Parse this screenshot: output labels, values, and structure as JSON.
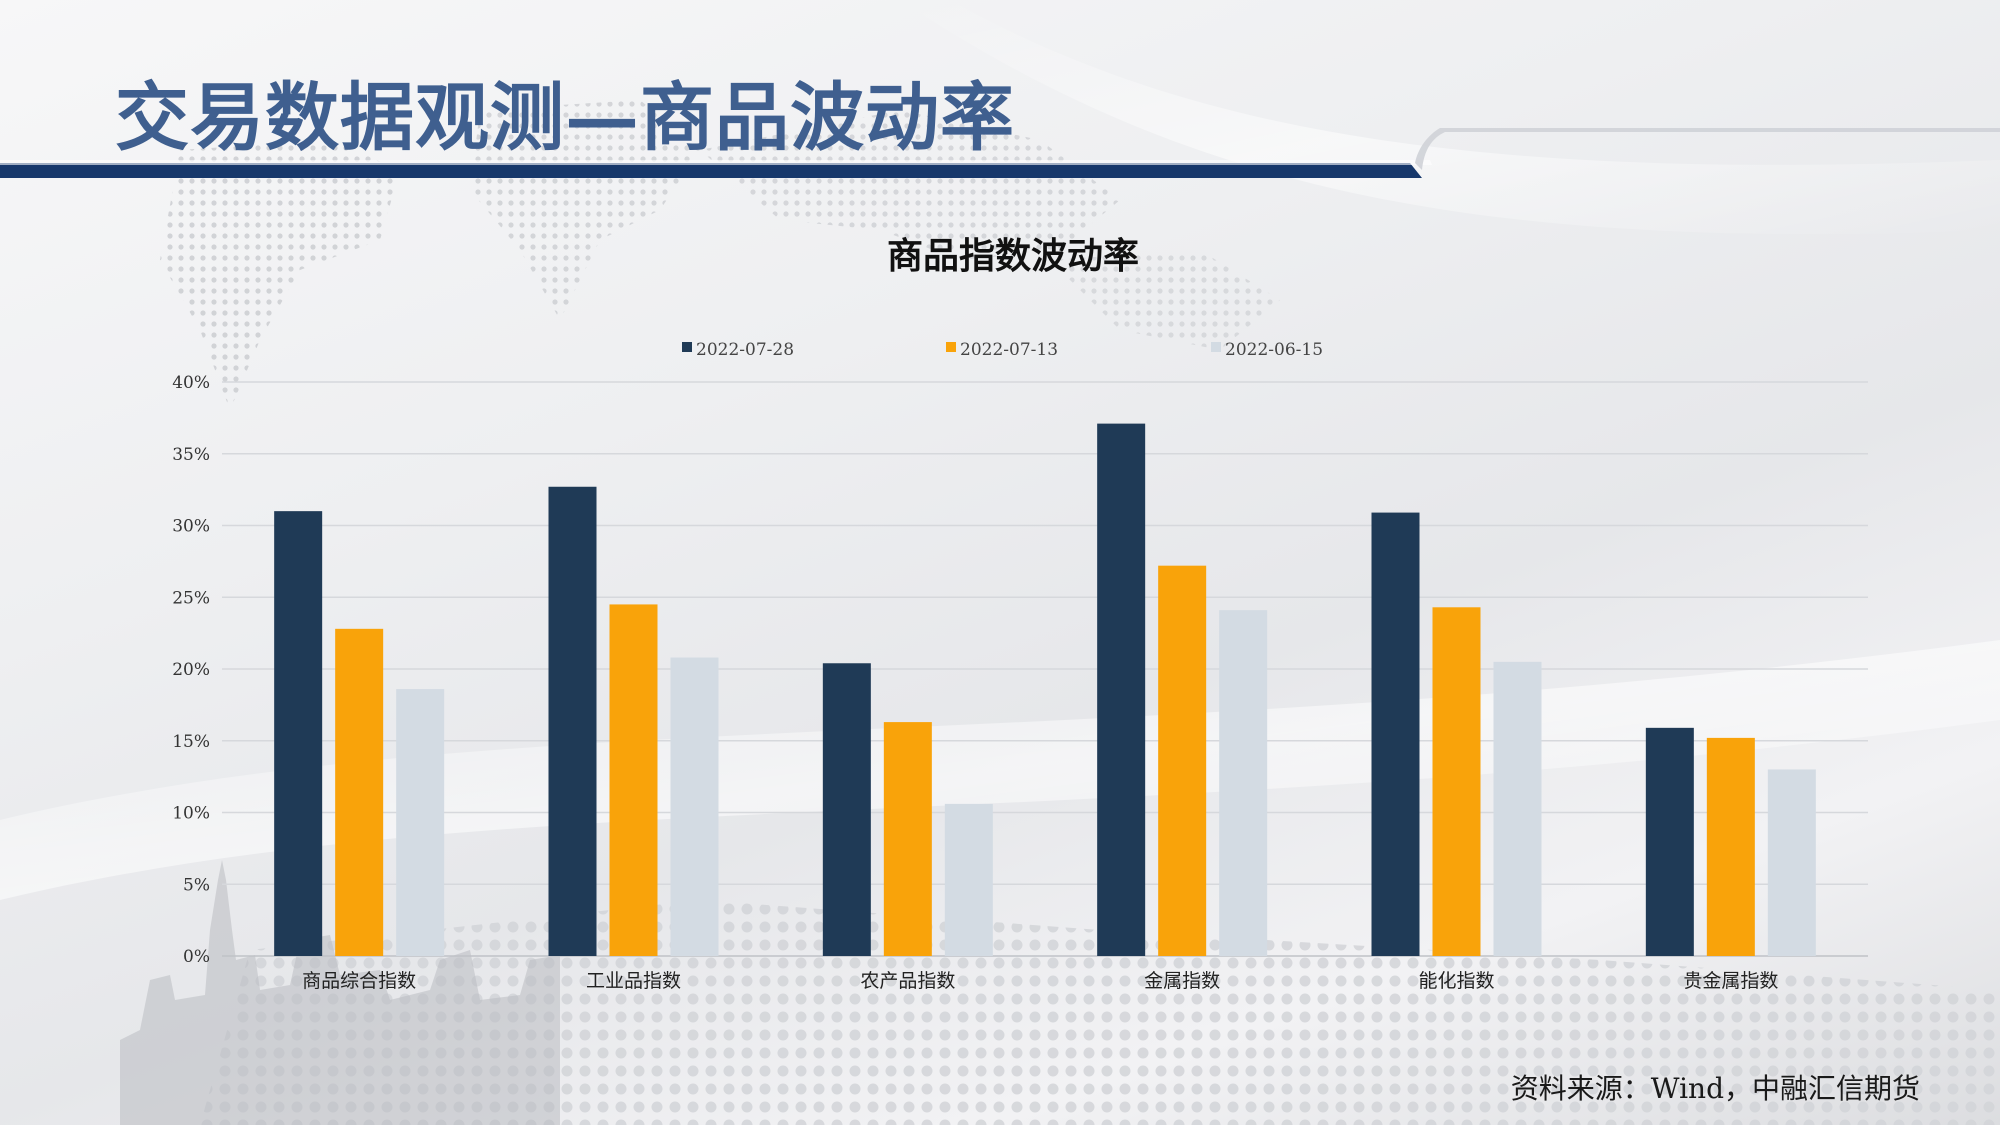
{
  "page": {
    "title": "交易数据观测—商品波动率",
    "source": "资料来源：Wind，中融汇信期货"
  },
  "colors": {
    "title_blue": "#3f5f8f",
    "header_bar": "#17386b"
  },
  "chart_data": {
    "type": "bar",
    "title": "商品指数波动率",
    "categories": [
      "商品综合指数",
      "工业品指数",
      "农产品指数",
      "金属指数",
      "能化指数",
      "贵金属指数"
    ],
    "series": [
      {
        "name": "2022-07-28",
        "color": "#1f3a56",
        "values": [
          31,
          32.7,
          20.4,
          37.1,
          30.9,
          15.9
        ]
      },
      {
        "name": "2022-07-13",
        "color": "#f9a30a",
        "values": [
          22.8,
          24.5,
          16.3,
          27.2,
          24.3,
          15.2
        ]
      },
      {
        "name": "2022-06-15",
        "color": "#d3dbe3",
        "values": [
          18.6,
          20.8,
          10.6,
          24.1,
          20.5,
          13.0
        ]
      }
    ],
    "ylim": [
      0,
      40
    ],
    "yticks": [
      "0%",
      "5%",
      "10%",
      "15%",
      "20%",
      "25%",
      "30%",
      "35%",
      "40%"
    ],
    "ytick_values": [
      0,
      5,
      10,
      15,
      20,
      25,
      30,
      35,
      40
    ],
    "legend_position": "top",
    "grid": true
  }
}
